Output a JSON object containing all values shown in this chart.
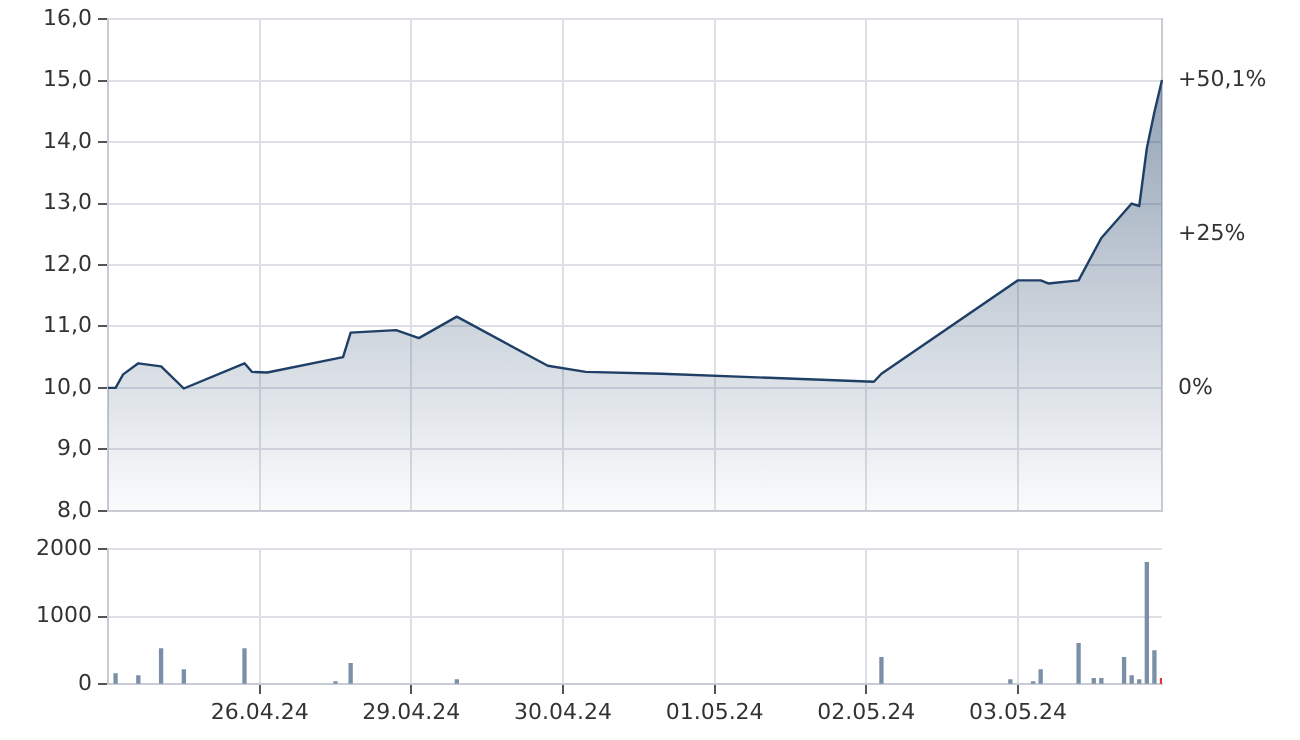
{
  "chart_data": [
    {
      "type": "area",
      "categories": [
        null,
        null,
        null,
        null,
        null,
        null,
        null,
        null,
        null,
        null,
        null,
        null,
        null,
        null,
        null,
        null,
        null,
        null,
        null,
        null,
        "26.04.24",
        null,
        null,
        null,
        null,
        null,
        null,
        null,
        null,
        null,
        null,
        null,
        null,
        null,
        null,
        null,
        null,
        null,
        null,
        null,
        "29.04.24",
        null,
        null,
        null,
        null,
        null,
        null,
        null,
        null,
        null,
        null,
        null,
        null,
        null,
        null,
        null,
        null,
        null,
        null,
        null,
        "30.04.24",
        null,
        null,
        null,
        null,
        null,
        null,
        null,
        null,
        null,
        null,
        null,
        null,
        null,
        null,
        null,
        null,
        null,
        null,
        null,
        "01.05.24",
        null,
        null,
        null,
        null,
        null,
        null,
        null,
        null,
        null,
        null,
        null,
        null,
        null,
        null,
        null,
        null,
        null,
        null,
        null,
        "02.05.24",
        null,
        null,
        null,
        null,
        null,
        null,
        null,
        null,
        null,
        null,
        null,
        null,
        null,
        null,
        null,
        null,
        null,
        null,
        null,
        "03.05.24",
        null,
        null,
        null,
        null,
        null,
        null,
        null,
        null,
        null,
        null,
        null,
        null,
        null,
        null,
        null,
        null,
        null,
        null,
        null
      ],
      "series": [
        {
          "color": "#1f3f66",
          "values": [
            10.0,
            10.0,
            10.22,
            null,
            10.4,
            null,
            null,
            10.35,
            null,
            null,
            9.99,
            null,
            null,
            null,
            null,
            null,
            null,
            null,
            10.4,
            10.26,
            null,
            10.25,
            null,
            null,
            null,
            null,
            null,
            null,
            null,
            null,
            null,
            10.5,
            10.9,
            null,
            null,
            null,
            null,
            null,
            10.94,
            null,
            null,
            10.81,
            null,
            null,
            null,
            null,
            11.16,
            null,
            null,
            null,
            null,
            null,
            null,
            null,
            null,
            null,
            null,
            null,
            10.36,
            null,
            null,
            null,
            null,
            10.26,
            null,
            null,
            null,
            null,
            null,
            null,
            null,
            null,
            null,
            10.23,
            null,
            null,
            null,
            null,
            null,
            null,
            null,
            null,
            null,
            null,
            null,
            null,
            null,
            null,
            null,
            null,
            null,
            null,
            null,
            null,
            null,
            null,
            null,
            null,
            null,
            null,
            null,
            10.1,
            10.23,
            null,
            null,
            null,
            null,
            null,
            null,
            null,
            null,
            null,
            null,
            null,
            null,
            null,
            null,
            null,
            null,
            null,
            11.75,
            null,
            null,
            11.75,
            11.7,
            null,
            null,
            null,
            11.75,
            null,
            null,
            12.44,
            null,
            null,
            null,
            13.0,
            12.96,
            13.9,
            14.49,
            15.01
          ]
        }
      ],
      "ylim": [
        8,
        16
      ],
      "yticks": [
        {
          "value": 8,
          "label": "8,0"
        },
        {
          "value": 9,
          "label": "9,0"
        },
        {
          "value": 10,
          "label": "10,0"
        },
        {
          "value": 11,
          "label": "11,0"
        },
        {
          "value": 12,
          "label": "12,0"
        },
        {
          "value": 13,
          "label": "13,0"
        },
        {
          "value": 14,
          "label": "14,0"
        },
        {
          "value": 15,
          "label": "15,0"
        },
        {
          "value": 16,
          "label": "16,0"
        }
      ],
      "y2lim": [
        -20,
        60
      ],
      "y2ticks": [
        {
          "value": 0,
          "label": "0%"
        },
        {
          "value": 25,
          "label": "+25%"
        },
        {
          "value": 50.1,
          "label": "+50,1%"
        }
      ],
      "tick_labels": "y",
      "grid": true
    },
    {
      "type": "bar",
      "categories": [
        null,
        null,
        null,
        null,
        null,
        null,
        null,
        null,
        null,
        null,
        null,
        null,
        null,
        null,
        null,
        null,
        null,
        null,
        null,
        null,
        "26.04.24",
        null,
        null,
        null,
        null,
        null,
        null,
        null,
        null,
        null,
        null,
        null,
        null,
        null,
        null,
        null,
        null,
        null,
        null,
        null,
        "29.04.24",
        null,
        null,
        null,
        null,
        null,
        null,
        null,
        null,
        null,
        null,
        null,
        null,
        null,
        null,
        null,
        null,
        null,
        null,
        null,
        "30.04.24",
        null,
        null,
        null,
        null,
        null,
        null,
        null,
        null,
        null,
        null,
        null,
        null,
        null,
        null,
        null,
        null,
        null,
        null,
        null,
        "01.05.24",
        null,
        null,
        null,
        null,
        null,
        null,
        null,
        null,
        null,
        null,
        null,
        null,
        null,
        null,
        null,
        null,
        null,
        null,
        null,
        "02.05.24",
        null,
        null,
        null,
        null,
        null,
        null,
        null,
        null,
        null,
        null,
        null,
        null,
        null,
        null,
        null,
        null,
        null,
        null,
        null,
        "03.05.24",
        null,
        null,
        null,
        null,
        null,
        null,
        null,
        null,
        null,
        null,
        null,
        null,
        null,
        null,
        null,
        null,
        null,
        null,
        null
      ],
      "values": [
        null,
        150,
        null,
        null,
        120,
        null,
        null,
        520,
        null,
        null,
        210,
        null,
        null,
        null,
        null,
        null,
        null,
        null,
        520,
        null,
        null,
        null,
        null,
        null,
        null,
        null,
        null,
        null,
        null,
        null,
        30,
        null,
        300,
        null,
        null,
        null,
        null,
        null,
        null,
        null,
        null,
        null,
        null,
        null,
        null,
        null,
        60,
        null,
        null,
        null,
        null,
        null,
        null,
        null,
        null,
        null,
        null,
        null,
        null,
        null,
        null,
        null,
        null,
        null,
        null,
        null,
        null,
        null,
        null,
        null,
        null,
        null,
        null,
        null,
        null,
        null,
        null,
        null,
        null,
        null,
        null,
        null,
        null,
        null,
        null,
        null,
        null,
        null,
        null,
        null,
        null,
        null,
        null,
        null,
        null,
        null,
        null,
        null,
        null,
        null,
        null,
        null,
        390,
        null,
        null,
        null,
        null,
        null,
        null,
        null,
        null,
        null,
        null,
        null,
        null,
        null,
        null,
        null,
        null,
        60,
        null,
        null,
        30,
        210,
        null,
        null,
        null,
        null,
        600,
        null,
        80,
        80,
        null,
        null,
        390,
        120,
        60,
        1800,
        490,
        80
      ],
      "colors": [
        "#7b8fa8",
        "#7b8fa8",
        "#7b8fa8",
        "#7b8fa8",
        "#7b8fa8",
        "#7b8fa8",
        "#7b8fa8",
        "#7b8fa8",
        "#7b8fa8",
        "#7b8fa8",
        "#7b8fa8",
        "#7b8fa8",
        "#7b8fa8",
        "#7b8fa8",
        "#7b8fa8",
        "#7b8fa8",
        "#7b8fa8",
        "#7b8fa8",
        "#7b8fa8",
        "#7b8fa8",
        "#7b8fa8",
        "#7b8fa8",
        "#7b8fa8",
        "#7b8fa8",
        "#7b8fa8",
        "#7b8fa8",
        "#7b8fa8",
        "#7b8fa8",
        "#7b8fa8",
        "#7b8fa8",
        "#7b8fa8",
        "#7b8fa8",
        "#7b8fa8",
        "#7b8fa8",
        "#7b8fa8",
        "#7b8fa8",
        "#7b8fa8",
        "#7b8fa8",
        "#7b8fa8",
        "#7b8fa8",
        "#7b8fa8",
        "#7b8fa8",
        "#7b8fa8",
        "#7b8fa8",
        "#7b8fa8",
        "#7b8fa8",
        "#7b8fa8",
        "#7b8fa8",
        "#7b8fa8",
        "#7b8fa8",
        "#7b8fa8",
        "#7b8fa8",
        "#7b8fa8",
        "#7b8fa8",
        "#7b8fa8",
        "#7b8fa8",
        "#7b8fa8",
        "#7b8fa8",
        "#7b8fa8",
        "#7b8fa8",
        "#7b8fa8",
        "#7b8fa8",
        "#7b8fa8",
        "#7b8fa8",
        "#7b8fa8",
        "#7b8fa8",
        "#7b8fa8",
        "#7b8fa8",
        "#7b8fa8",
        "#7b8fa8",
        "#7b8fa8",
        "#7b8fa8",
        "#7b8fa8",
        "#7b8fa8",
        "#7b8fa8",
        "#7b8fa8",
        "#7b8fa8",
        "#7b8fa8",
        "#7b8fa8",
        "#7b8fa8",
        "#7b8fa8",
        "#7b8fa8",
        "#7b8fa8",
        "#7b8fa8",
        "#7b8fa8",
        "#7b8fa8",
        "#7b8fa8",
        "#7b8fa8",
        "#7b8fa8",
        "#7b8fa8",
        "#7b8fa8",
        "#7b8fa8",
        "#7b8fa8",
        "#7b8fa8",
        "#7b8fa8",
        "#7b8fa8",
        "#7b8fa8",
        "#7b8fa8",
        "#7b8fa8",
        "#7b8fa8",
        "#7b8fa8",
        "#7b8fa8",
        "#7b8fa8",
        "#7b8fa8",
        "#7b8fa8",
        "#7b8fa8",
        "#7b8fa8",
        "#7b8fa8",
        "#7b8fa8",
        "#7b8fa8",
        "#7b8fa8",
        "#7b8fa8",
        "#7b8fa8",
        "#7b8fa8",
        "#7b8fa8",
        "#7b8fa8",
        "#7b8fa8",
        "#7b8fa8",
        "#7b8fa8",
        "#7b8fa8",
        "#7b8fa8",
        "#7b8fa8",
        "#7b8fa8",
        "#7b8fa8",
        "#7b8fa8",
        "#7b8fa8",
        "#7b8fa8",
        "#7b8fa8",
        "#7b8fa8",
        "#7b8fa8",
        "#7b8fa8",
        "#7b8fa8",
        "#7b8fa8",
        "#7b8fa8",
        "#7b8fa8",
        "#7b8fa8",
        "#7b8fa8",
        "#7b8fa8",
        "#7b8fa8",
        "#e0303a"
      ],
      "ylim": [
        0,
        2000
      ],
      "yticks": [
        0,
        1000,
        2000
      ],
      "grid": true
    }
  ]
}
